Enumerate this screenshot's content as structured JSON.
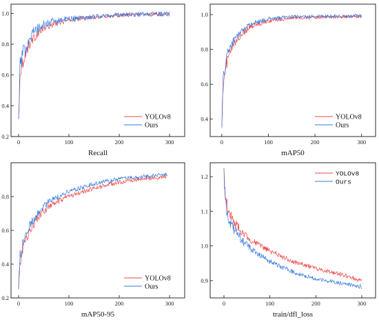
{
  "figure": {
    "background": "#ffffff"
  },
  "chart_data": [
    {
      "type": "line",
      "xlabel": "Recall",
      "xticks": [
        0,
        100,
        200,
        300
      ],
      "yticks": [
        "0.2",
        "0.4",
        "0.6",
        "0.8",
        "1.0"
      ],
      "xlim": [
        -15,
        330
      ],
      "ylim": [
        0.2,
        1.06
      ],
      "legend": "bottom-right",
      "legend_font": "serif",
      "series": [
        {
          "name": "YOLOv8",
          "color": "#ee4444",
          "key_points": [
            [
              0,
              0.3
            ],
            [
              3,
              0.62
            ],
            [
              10,
              0.7
            ],
            [
              20,
              0.79
            ],
            [
              30,
              0.84
            ],
            [
              50,
              0.9
            ],
            [
              70,
              0.93
            ],
            [
              100,
              0.955
            ],
            [
              150,
              0.975
            ],
            [
              200,
              0.988
            ],
            [
              250,
              0.993
            ],
            [
              300,
              0.995
            ]
          ],
          "noise": 0.012
        },
        {
          "name": "Ours",
          "color": "#3377dd",
          "key_points": [
            [
              0,
              0.3
            ],
            [
              3,
              0.66
            ],
            [
              10,
              0.75
            ],
            [
              20,
              0.83
            ],
            [
              30,
              0.88
            ],
            [
              50,
              0.925
            ],
            [
              70,
              0.95
            ],
            [
              100,
              0.965
            ],
            [
              150,
              0.98
            ],
            [
              200,
              0.99
            ],
            [
              250,
              0.995
            ],
            [
              300,
              0.997
            ]
          ],
          "noise": 0.016
        }
      ]
    },
    {
      "type": "line",
      "xlabel": "mAP50",
      "xticks": [
        0,
        100,
        200,
        300
      ],
      "yticks": [
        "0.4",
        "0.6",
        "0.8",
        "1.0"
      ],
      "xlim": [
        -25,
        330
      ],
      "ylim": [
        0.3,
        1.06
      ],
      "legend": "bottom-right",
      "legend_font": "serif",
      "series": [
        {
          "name": "YOLOv8",
          "color": "#ee4444",
          "key_points": [
            [
              0,
              0.39
            ],
            [
              3,
              0.58
            ],
            [
              10,
              0.72
            ],
            [
              20,
              0.8
            ],
            [
              40,
              0.88
            ],
            [
              60,
              0.93
            ],
            [
              100,
              0.965
            ],
            [
              150,
              0.98
            ],
            [
              200,
              0.985
            ],
            [
              250,
              0.988
            ],
            [
              300,
              0.99
            ]
          ],
          "noise": 0.01
        },
        {
          "name": "Ours",
          "color": "#3377dd",
          "key_points": [
            [
              0,
              0.39
            ],
            [
              3,
              0.62
            ],
            [
              10,
              0.76
            ],
            [
              20,
              0.83
            ],
            [
              40,
              0.9
            ],
            [
              60,
              0.945
            ],
            [
              100,
              0.975
            ],
            [
              150,
              0.988
            ],
            [
              200,
              0.99
            ],
            [
              250,
              0.992
            ],
            [
              300,
              0.993
            ]
          ],
          "noise": 0.01
        }
      ]
    },
    {
      "type": "line",
      "xlabel": "mAP50-95",
      "xticks": [
        0,
        100,
        200,
        300
      ],
      "yticks": [
        "0.2",
        "0.4",
        "0.6",
        "0.8"
      ],
      "xlim": [
        -15,
        330
      ],
      "ylim": [
        0.2,
        1.0
      ],
      "legend": "bottom-right",
      "legend_font": "serif",
      "series": [
        {
          "name": "YOLOv8",
          "color": "#ee4444",
          "key_points": [
            [
              0,
              0.26
            ],
            [
              3,
              0.42
            ],
            [
              10,
              0.5
            ],
            [
              20,
              0.59
            ],
            [
              40,
              0.68
            ],
            [
              60,
              0.74
            ],
            [
              100,
              0.8
            ],
            [
              150,
              0.85
            ],
            [
              200,
              0.885
            ],
            [
              250,
              0.905
            ],
            [
              295,
              0.915
            ]
          ],
          "noise": 0.012
        },
        {
          "name": "Ours",
          "color": "#3377dd",
          "key_points": [
            [
              0,
              0.26
            ],
            [
              3,
              0.44
            ],
            [
              10,
              0.53
            ],
            [
              20,
              0.62
            ],
            [
              40,
              0.71
            ],
            [
              60,
              0.77
            ],
            [
              100,
              0.83
            ],
            [
              150,
              0.875
            ],
            [
              200,
              0.905
            ],
            [
              250,
              0.92
            ],
            [
              295,
              0.93
            ]
          ],
          "noise": 0.012
        }
      ]
    },
    {
      "type": "line",
      "xlabel": "train/dfl_loss",
      "xticks": [
        0,
        100,
        200,
        300
      ],
      "yticks": [
        "0.9",
        "1.0",
        "1.1",
        "1.2"
      ],
      "xlim": [
        -30,
        330
      ],
      "ylim": [
        0.85,
        1.24
      ],
      "legend": "top-right",
      "legend_font": "mono",
      "series": [
        {
          "name": "YOLOv8",
          "color": "#ee4444",
          "key_points": [
            [
              0,
              1.21
            ],
            [
              3,
              1.14
            ],
            [
              10,
              1.1
            ],
            [
              20,
              1.07
            ],
            [
              40,
              1.04
            ],
            [
              60,
              1.015
            ],
            [
              100,
              0.985
            ],
            [
              150,
              0.955
            ],
            [
              200,
              0.935
            ],
            [
              250,
              0.92
            ],
            [
              300,
              0.9
            ]
          ],
          "noise": 0.006
        },
        {
          "name": "Ours",
          "color": "#3377dd",
          "key_points": [
            [
              0,
              1.21
            ],
            [
              3,
              1.12
            ],
            [
              10,
              1.08
            ],
            [
              20,
              1.05
            ],
            [
              40,
              1.015
            ],
            [
              60,
              0.99
            ],
            [
              100,
              0.955
            ],
            [
              150,
              0.925
            ],
            [
              200,
              0.905
            ],
            [
              250,
              0.893
            ],
            [
              300,
              0.882
            ]
          ],
          "noise": 0.006
        }
      ]
    }
  ]
}
